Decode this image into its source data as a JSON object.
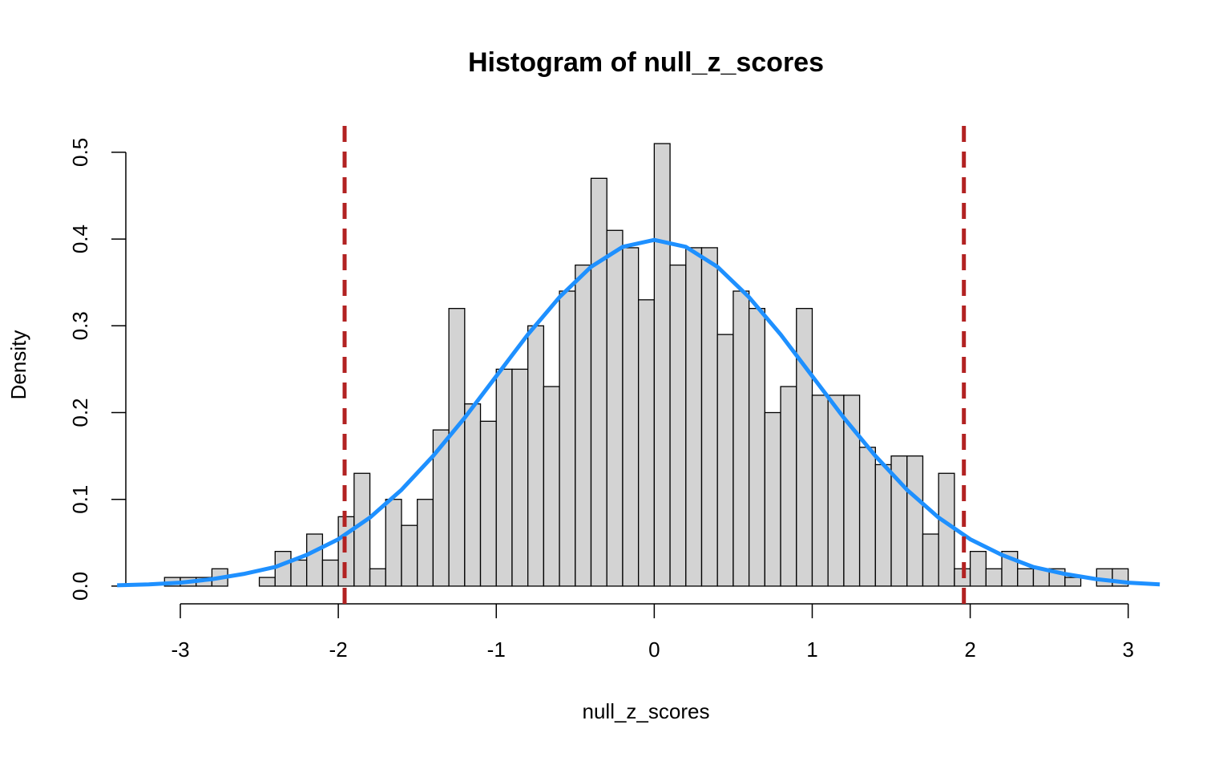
{
  "chart_data": {
    "type": "histogram",
    "title": "Histogram of null_z_scores",
    "x_label": "null_z_scores",
    "y_label": "Density",
    "bins": [
      -3.1,
      -3.0,
      -2.9,
      -2.8,
      -2.7,
      -2.6,
      -2.5,
      -2.4,
      -2.3,
      -2.2,
      -2.1,
      -2.0,
      -1.9,
      -1.8,
      -1.7,
      -1.6,
      -1.5,
      -1.4,
      -1.3,
      -1.2,
      -1.1,
      -1.0,
      -0.9,
      -0.8,
      -0.7,
      -0.6,
      -0.5,
      -0.4,
      -0.3,
      -0.2,
      -0.1,
      0,
      0.1,
      0.2,
      0.3,
      0.4,
      0.5,
      0.6,
      0.7,
      0.8,
      0.9,
      1.0,
      1.1,
      1.2,
      1.3,
      1.4,
      1.5,
      1.6,
      1.7,
      1.8,
      1.9,
      2.0,
      2.1,
      2.2,
      2.3,
      2.4,
      2.5,
      2.6,
      2.7,
      2.8,
      2.9,
      3.0
    ],
    "values": [
      0.01,
      0.01,
      0.01,
      0.02,
      0,
      0,
      0.01,
      0.04,
      0.03,
      0.06,
      0.03,
      0.08,
      0.13,
      0.02,
      0.1,
      0.07,
      0.1,
      0.18,
      0.32,
      0.21,
      0.19,
      0.25,
      0.25,
      0.3,
      0.23,
      0.34,
      0.37,
      0.47,
      0.41,
      0.39,
      0.33,
      0.51,
      0.37,
      0.39,
      0.39,
      0.29,
      0.34,
      0.32,
      0.2,
      0.23,
      0.32,
      0.22,
      0.22,
      0.22,
      0.16,
      0.14,
      0.15,
      0.15,
      0.06,
      0.13,
      0.02,
      0.04,
      0.02,
      0.04,
      0.02,
      0.02,
      0.02,
      0.01,
      0,
      0.02,
      0.02
    ],
    "color": "#d3d3d3",
    "curve": {
      "color": "#1e90ff",
      "x": [
        -3.4,
        -3.2,
        -3.0,
        -2.8,
        -2.6,
        -2.4,
        -2.2,
        -2.0,
        -1.8,
        -1.6,
        -1.4,
        -1.2,
        -1.0,
        -0.8,
        -0.6,
        -0.4,
        -0.2,
        0,
        0.2,
        0.4,
        0.6,
        0.8,
        1.0,
        1.2,
        1.4,
        1.6,
        1.8,
        2.0,
        2.2,
        2.4,
        2.6,
        2.8,
        3.0,
        3.2
      ],
      "values": [
        0.001,
        0.002,
        0.004,
        0.008,
        0.014,
        0.022,
        0.036,
        0.054,
        0.079,
        0.111,
        0.15,
        0.194,
        0.242,
        0.29,
        0.333,
        0.368,
        0.391,
        0.399,
        0.391,
        0.368,
        0.333,
        0.29,
        0.242,
        0.194,
        0.15,
        0.111,
        0.079,
        0.054,
        0.036,
        0.022,
        0.014,
        0.008,
        0.004,
        0.002
      ]
    },
    "vlines": {
      "color": "#b22222",
      "values": [
        -1.96,
        1.96
      ]
    },
    "xlim": [
      -3.345,
      3.245
    ],
    "ylim": [
      -0.0204,
      0.5304
    ],
    "xticks": [
      -3,
      -2,
      -1,
      0,
      1,
      2,
      3
    ],
    "yticks": [
      {
        "value": 0,
        "label": "0.0"
      },
      {
        "value": 0.1,
        "label": "0.1"
      },
      {
        "value": 0.2,
        "label": "0.2"
      },
      {
        "value": 0.3,
        "label": "0.3"
      },
      {
        "value": 0.4,
        "label": "0.4"
      },
      {
        "value": 0.5,
        "label": "0.5"
      }
    ]
  }
}
